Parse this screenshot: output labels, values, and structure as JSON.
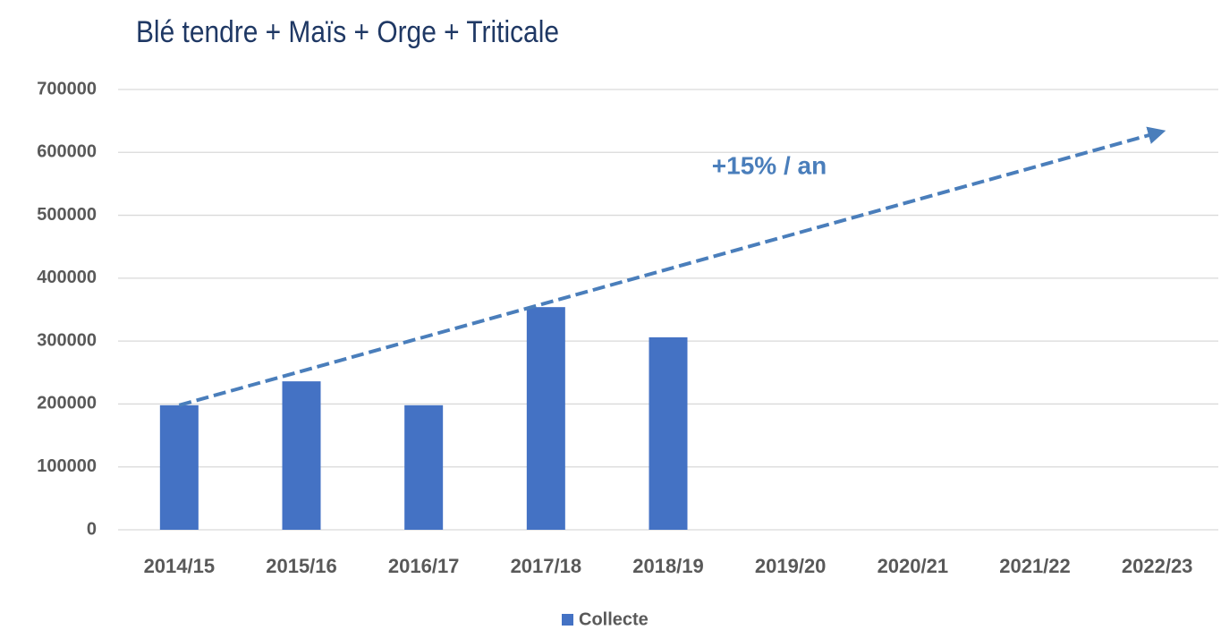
{
  "chart_data": {
    "type": "bar",
    "title": "Blé tendre + Maïs + Orge + Triticale",
    "categories": [
      "2014/15",
      "2015/16",
      "2016/17",
      "2017/18",
      "2018/19",
      "2019/20",
      "2020/21",
      "2021/22",
      "2022/23"
    ],
    "series": [
      {
        "name": "Collecte",
        "color": "#4472c4",
        "values": [
          198000,
          236000,
          198000,
          354000,
          306000,
          null,
          null,
          null,
          null
        ]
      }
    ],
    "ylim": [
      0,
      700000
    ],
    "yticks": [
      0,
      100000,
      200000,
      300000,
      400000,
      500000,
      600000,
      700000
    ],
    "grid": true,
    "legend": "bottom",
    "trend": {
      "color": "#4a7ebb",
      "label": "+15% / an",
      "values": [
        198000,
        631000
      ]
    }
  }
}
